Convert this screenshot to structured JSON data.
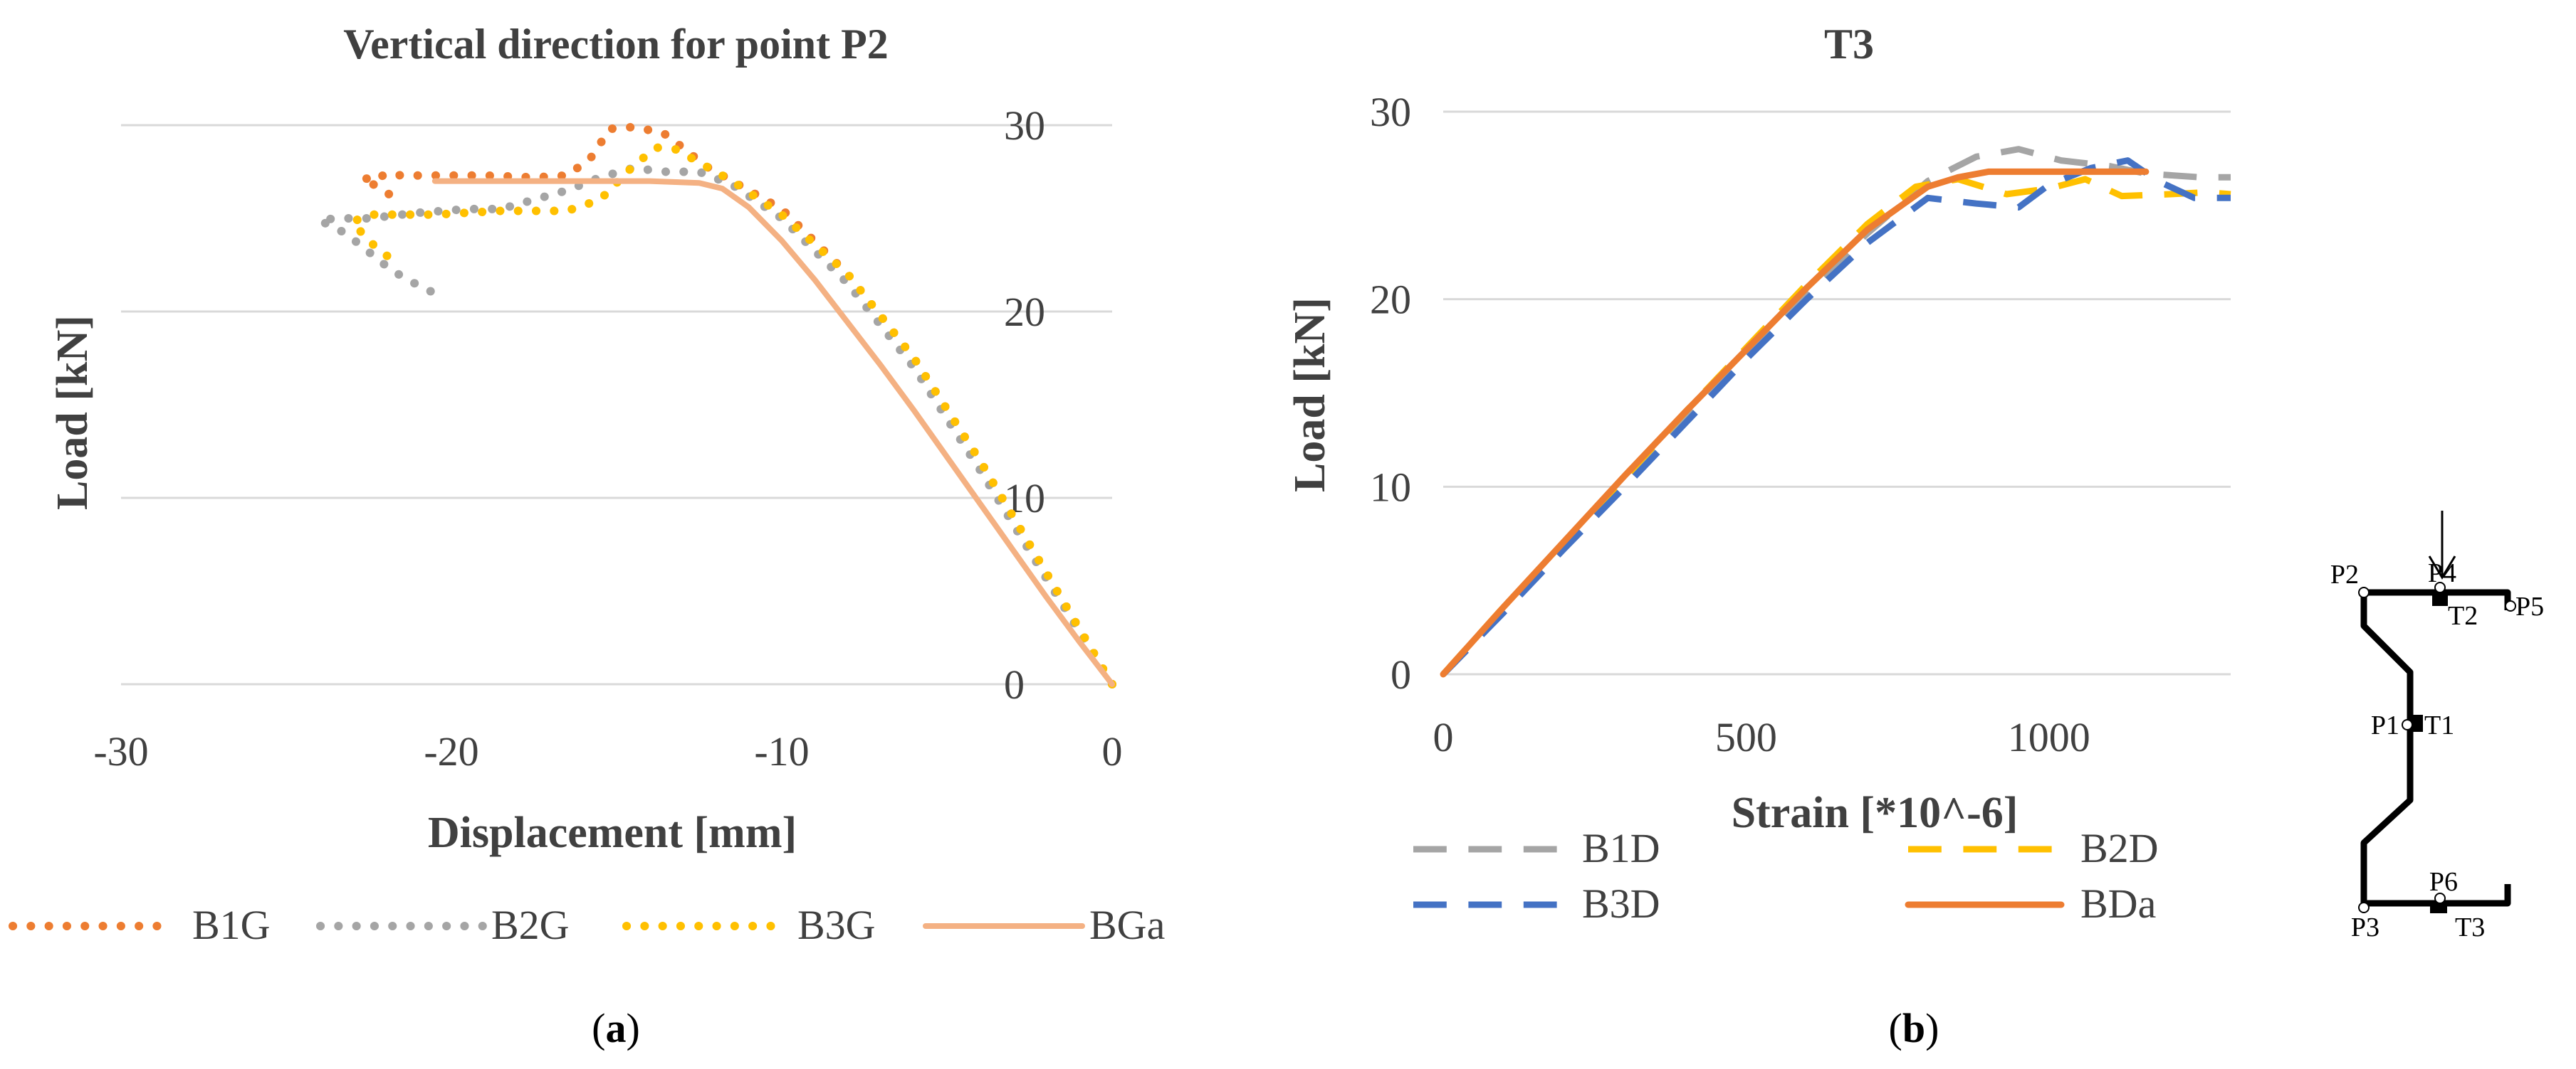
{
  "chart_data": [
    {
      "type": "line",
      "panel_label_parts": [
        "(",
        "a",
        ")"
      ],
      "title": "Vertical direction for point P2",
      "xlabel": "Displacement [mm]",
      "ylabel": "Load [kN]",
      "xlim": [
        -30,
        0
      ],
      "ylim": [
        0,
        30
      ],
      "x_ticks": [
        -30,
        -20,
        -10,
        0
      ],
      "y_ticks": [
        0,
        10,
        20,
        30
      ],
      "x_tick_labels": [
        "-30",
        "-20",
        "-10",
        "0"
      ],
      "y_tick_labels": [
        "0",
        "10",
        "20",
        "30"
      ],
      "y_axis_side": "right",
      "grid": "horizontal",
      "legend_position": "bottom",
      "series": [
        {
          "name": "B1G",
          "color": "#ED7D31",
          "style": "dotted",
          "points": [
            [
              0,
              0
            ],
            [
              -2,
              6
            ],
            [
              -4,
              12
            ],
            [
              -6,
              17.5
            ],
            [
              -8,
              22
            ],
            [
              -10,
              25.5
            ],
            [
              -11.5,
              27
            ],
            [
              -12.3,
              27.8
            ],
            [
              -13,
              28.8
            ],
            [
              -13.6,
              29.6
            ],
            [
              -14.5,
              29.9
            ],
            [
              -15.2,
              29.8
            ],
            [
              -15.8,
              28.2
            ],
            [
              -16.5,
              27.3
            ],
            [
              -17.5,
              27.2
            ],
            [
              -19,
              27.3
            ],
            [
              -20.5,
              27.3
            ],
            [
              -21.5,
              27.3
            ],
            [
              -22,
              27.4
            ],
            [
              -22.3,
              27
            ],
            [
              -22.7,
              27.2
            ],
            [
              -21.8,
              26.2
            ]
          ]
        },
        {
          "name": "B2G",
          "color": "#A5A5A5",
          "style": "dotted",
          "points": [
            [
              0,
              0
            ],
            [
              -2,
              5.7
            ],
            [
              -4,
              11.5
            ],
            [
              -6,
              17
            ],
            [
              -8,
              21.5
            ],
            [
              -10,
              25
            ],
            [
              -11.5,
              26.8
            ],
            [
              -12.5,
              27.5
            ],
            [
              -13.5,
              27.5
            ],
            [
              -14.5,
              27.7
            ],
            [
              -15.5,
              27.2
            ],
            [
              -16.5,
              26.5
            ],
            [
              -17.5,
              26
            ],
            [
              -18.5,
              25.5
            ],
            [
              -19.5,
              25.5
            ],
            [
              -21,
              25.3
            ],
            [
              -22.5,
              25
            ],
            [
              -23.5,
              25
            ],
            [
              -24,
              24.9
            ],
            [
              -23.2,
              24.2
            ],
            [
              -22.5,
              23.2
            ],
            [
              -21.8,
              22.2
            ],
            [
              -20.8,
              21.2
            ],
            [
              -20.2,
              20.8
            ]
          ]
        },
        {
          "name": "B3G",
          "color": "#FFC000",
          "style": "dotted",
          "points": [
            [
              0,
              0
            ],
            [
              -2,
              6
            ],
            [
              -4,
              12
            ],
            [
              -6,
              17.5
            ],
            [
              -8,
              22
            ],
            [
              -10,
              25.2
            ],
            [
              -11.5,
              27
            ],
            [
              -12.5,
              28
            ],
            [
              -13.2,
              28.7
            ],
            [
              -13.8,
              28.8
            ],
            [
              -14.5,
              27.8
            ],
            [
              -15.5,
              26
            ],
            [
              -16.5,
              25.4
            ],
            [
              -17.5,
              25.4
            ],
            [
              -18.5,
              25.4
            ],
            [
              -19.5,
              25.3
            ],
            [
              -20.5,
              25.2
            ],
            [
              -21.5,
              25.2
            ],
            [
              -22.5,
              25.2
            ],
            [
              -23,
              24.8
            ],
            [
              -22.6,
              24
            ],
            [
              -22.2,
              23.3
            ],
            [
              -21.8,
              22.8
            ]
          ]
        },
        {
          "name": "BGa",
          "color": "#F4B183",
          "style": "solid",
          "points": [
            [
              0,
              0
            ],
            [
              -1,
              2.3
            ],
            [
              -2,
              4.7
            ],
            [
              -3,
              7.2
            ],
            [
              -4,
              9.7
            ],
            [
              -5,
              12.2
            ],
            [
              -6,
              14.7
            ],
            [
              -7,
              17.1
            ],
            [
              -8,
              19.4
            ],
            [
              -9,
              21.7
            ],
            [
              -10,
              23.8
            ],
            [
              -11,
              25.6
            ],
            [
              -11.8,
              26.6
            ],
            [
              -12.5,
              26.9
            ],
            [
              -14,
              27
            ],
            [
              -16,
              27
            ],
            [
              -18,
              27
            ],
            [
              -20.5,
              27
            ]
          ]
        }
      ]
    },
    {
      "type": "line",
      "panel_label_parts": [
        "(",
        "b",
        ")"
      ],
      "title": "T3",
      "xlabel": "Strain [*10^-6]",
      "ylabel": "Load [kN]",
      "xlim": [
        0,
        1300
      ],
      "ylim": [
        0,
        30
      ],
      "x_ticks": [
        0,
        500,
        1000
      ],
      "y_ticks": [
        0,
        10,
        20,
        30
      ],
      "x_tick_labels": [
        "0",
        "500",
        "1000"
      ],
      "y_tick_labels": [
        "0",
        "10",
        "20",
        "30"
      ],
      "grid": "horizontal",
      "legend_position": "bottom",
      "series": [
        {
          "name": "B1D",
          "color": "#A5A5A5",
          "style": "dashed",
          "points": [
            [
              0,
              0
            ],
            [
              100,
              3.5
            ],
            [
              200,
              6.9
            ],
            [
              300,
              10.3
            ],
            [
              400,
              13.7
            ],
            [
              500,
              17.1
            ],
            [
              600,
              20.4
            ],
            [
              700,
              23.5
            ],
            [
              800,
              26.3
            ],
            [
              880,
              27.6
            ],
            [
              950,
              28
            ],
            [
              1020,
              27.4
            ],
            [
              1100,
              27.1
            ],
            [
              1160,
              26.7
            ],
            [
              1250,
              26.5
            ],
            [
              1300,
              26.5
            ]
          ]
        },
        {
          "name": "B2D",
          "color": "#FFC000",
          "style": "dashed",
          "points": [
            [
              0,
              0
            ],
            [
              100,
              3.6
            ],
            [
              200,
              7
            ],
            [
              300,
              10.5
            ],
            [
              400,
              14
            ],
            [
              500,
              17.4
            ],
            [
              600,
              20.8
            ],
            [
              700,
              24
            ],
            [
              780,
              26
            ],
            [
              850,
              26.4
            ],
            [
              930,
              25.6
            ],
            [
              1000,
              25.9
            ],
            [
              1060,
              26.4
            ],
            [
              1120,
              25.5
            ],
            [
              1200,
              25.6
            ],
            [
              1260,
              25.7
            ],
            [
              1300,
              25.6
            ]
          ]
        },
        {
          "name": "B3D",
          "color": "#4472C4",
          "style": "dashed",
          "points": [
            [
              0,
              0
            ],
            [
              100,
              3.3
            ],
            [
              200,
              6.7
            ],
            [
              300,
              10
            ],
            [
              400,
              13.4
            ],
            [
              500,
              16.8
            ],
            [
              600,
              20
            ],
            [
              700,
              23
            ],
            [
              800,
              25.4
            ],
            [
              880,
              25.1
            ],
            [
              950,
              24.9
            ],
            [
              1000,
              26.1
            ],
            [
              1070,
              27
            ],
            [
              1130,
              27.4
            ],
            [
              1180,
              26.3
            ],
            [
              1240,
              25.4
            ],
            [
              1300,
              25.4
            ]
          ]
        },
        {
          "name": "BDa",
          "color": "#ED7D31",
          "style": "solid",
          "points": [
            [
              0,
              0
            ],
            [
              100,
              3.6
            ],
            [
              200,
              7.1
            ],
            [
              300,
              10.6
            ],
            [
              400,
              14
            ],
            [
              500,
              17.3
            ],
            [
              600,
              20.6
            ],
            [
              700,
              23.7
            ],
            [
              800,
              26
            ],
            [
              850,
              26.5
            ],
            [
              900,
              26.8
            ],
            [
              1000,
              26.8
            ],
            [
              1160,
              26.8
            ]
          ]
        }
      ]
    }
  ],
  "diagram": {
    "labels": {
      "p2": "P2",
      "p4": "P4",
      "p5": "P5",
      "t2": "T2",
      "p1": "P1",
      "t1": "T1",
      "p6": "P6",
      "p3": "P3",
      "t3": "T3"
    }
  }
}
